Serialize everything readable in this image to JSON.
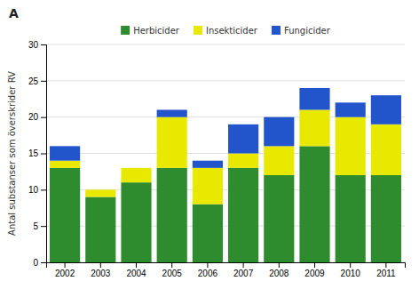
{
  "chart_data": {
    "type": "bar",
    "title": "A",
    "ylabel": "Antal substanser som överskrider RV",
    "categories": [
      "2002",
      "2003",
      "2004",
      "2005",
      "2006",
      "2007",
      "2008",
      "2009",
      "2010",
      "2011"
    ],
    "series": [
      {
        "name": "Herbicider",
        "color": "#2e8b2e",
        "values": [
          13,
          9,
          11,
          13,
          8,
          13,
          12,
          16,
          12,
          12
        ]
      },
      {
        "name": "Insekticider",
        "color": "#e8e800",
        "values": [
          1,
          1,
          2,
          7,
          5,
          2,
          4,
          5,
          8,
          7
        ]
      },
      {
        "name": "Fungicider",
        "color": "#2255cc",
        "values": [
          2,
          0,
          0,
          1,
          1,
          4,
          4,
          3,
          2,
          4
        ]
      }
    ],
    "ylim": [
      0,
      30
    ],
    "yticks": [
      0,
      5,
      10,
      15,
      20,
      25,
      30
    ],
    "grid": true,
    "stacked": true,
    "legend": "top"
  }
}
